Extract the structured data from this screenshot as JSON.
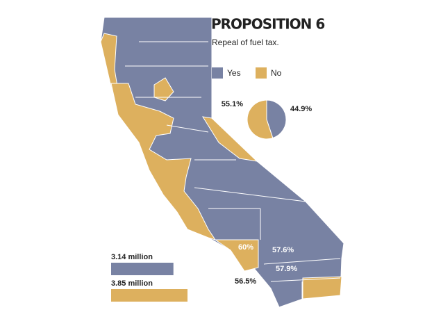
{
  "title": "PROPOSITION 6",
  "subtitle": "Repeal of fuel tax.",
  "chart_data": [
    {
      "type": "pie",
      "categories": [
        "Yes",
        "No"
      ],
      "values": [
        44.9,
        55.1
      ],
      "value_labels": [
        "44.9%",
        "55.1%"
      ],
      "colors": [
        "#7882a3",
        "#ddb05e"
      ]
    },
    {
      "type": "bar",
      "values": [
        3140000,
        3850000
      ],
      "value_labels": [
        "3.14 million",
        "3.85 million"
      ],
      "colors": [
        "#7882a3",
        "#ddb05e"
      ]
    }
  ],
  "map": {
    "annotations": [
      "60%",
      "57.6%",
      "57.9%",
      "56.5%"
    ]
  }
}
